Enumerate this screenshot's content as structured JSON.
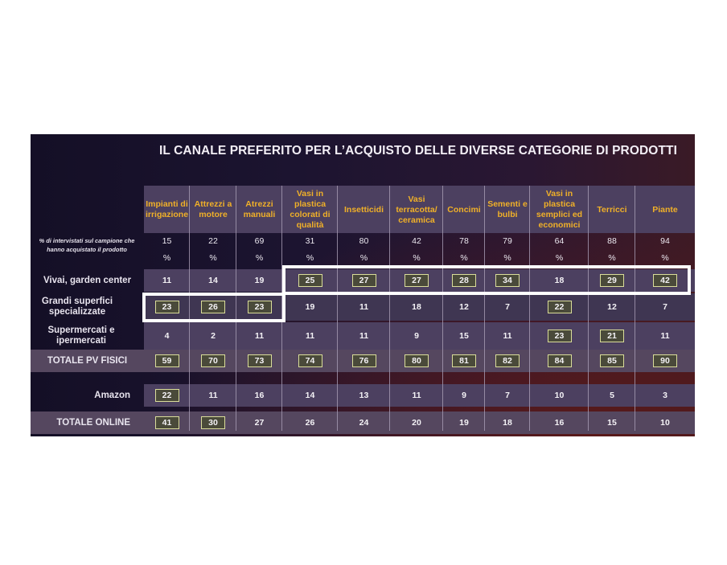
{
  "title": "IL CANALE PREFERITO PER L’ACQUISTO DELLE DIVERSE CATEGORIE DI PRODOTTI",
  "sample_note": "% di intervistati sul campione che hanno acquistato il prodotto",
  "percent_symbol": "%",
  "chart_data": {
    "type": "table",
    "title": "IL CANALE PREFERITO PER L’ACQUISTO DELLE DIVERSE CATEGORIE DI PRODOTTI",
    "columns": [
      "Impianti di irrigazione",
      "Attrezzi a motore",
      "Atrezzi manuali",
      "Vasi in plastica colorati di qualità",
      "Insetticidi",
      "Vasi terracotta/ ceramica",
      "Concimi",
      "Sementi e bulbi",
      "Vasi in plastica semplici ed economici",
      "Terricci",
      "Piante"
    ],
    "sample_share": [
      15,
      22,
      69,
      31,
      80,
      42,
      78,
      79,
      64,
      88,
      94
    ],
    "rows": [
      {
        "label": "Vivai, garden center",
        "values": [
          11,
          14,
          19,
          25,
          27,
          27,
          28,
          34,
          18,
          29,
          42
        ],
        "boxed": [
          false,
          false,
          false,
          true,
          true,
          true,
          true,
          true,
          false,
          true,
          true
        ]
      },
      {
        "label": "Grandi superfici specializzate",
        "values": [
          23,
          26,
          23,
          19,
          11,
          18,
          12,
          7,
          22,
          12,
          7
        ],
        "boxed": [
          true,
          true,
          true,
          false,
          false,
          false,
          false,
          false,
          true,
          false,
          false
        ]
      },
      {
        "label": "Supermercati e ipermercati",
        "values": [
          4,
          2,
          11,
          11,
          11,
          9,
          15,
          11,
          23,
          21,
          11
        ],
        "boxed": [
          false,
          false,
          false,
          false,
          false,
          false,
          false,
          false,
          true,
          true,
          false
        ]
      },
      {
        "label": "TOTALE PV FISICI",
        "values": [
          59,
          70,
          73,
          74,
          76,
          80,
          81,
          82,
          84,
          85,
          90
        ],
        "boxed": [
          true,
          true,
          true,
          true,
          true,
          true,
          true,
          true,
          true,
          true,
          true
        ]
      },
      {
        "label": "Amazon",
        "values": [
          22,
          11,
          16,
          14,
          13,
          11,
          9,
          7,
          10,
          5,
          3
        ],
        "boxed": [
          true,
          false,
          false,
          false,
          false,
          false,
          false,
          false,
          false,
          false,
          false
        ]
      },
      {
        "label": "TOTALE ONLINE",
        "values": [
          41,
          30,
          27,
          26,
          24,
          20,
          19,
          18,
          16,
          15,
          10
        ],
        "boxed": [
          true,
          true,
          false,
          false,
          false,
          false,
          false,
          false,
          false,
          false,
          false
        ]
      }
    ]
  }
}
